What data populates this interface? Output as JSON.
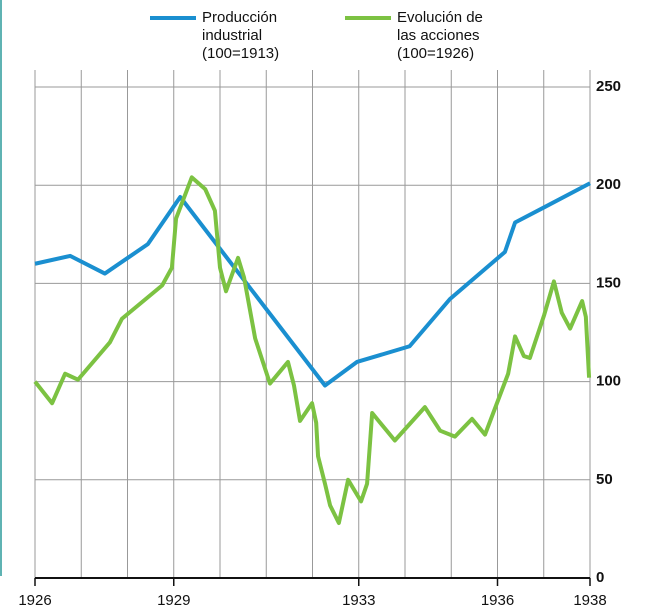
{
  "chart_data": {
    "type": "line",
    "xlim": [
      1926,
      1938
    ],
    "xticks": [
      1926,
      1929,
      1933,
      1936,
      1938
    ],
    "ylim": [
      0,
      250
    ],
    "yticks": [
      0,
      50,
      100,
      150,
      200,
      250
    ],
    "grid": true,
    "y_axis_side": "right",
    "series": [
      {
        "name": "Producción\nindustrial\n(100=1913)",
        "color": "#1a8fd0",
        "x": [
          1926,
          1926.76,
          1927.51,
          1928.44,
          1929.14,
          1932.27,
          1932.96,
          1934.1,
          1934.97,
          1936.16,
          1936.38,
          1937.03,
          1938
        ],
        "values": [
          160,
          164,
          155,
          170,
          194,
          98,
          110,
          118,
          142,
          166,
          181,
          189,
          201
        ]
      },
      {
        "name": "Evolución de\nlas acciones\n(100=1926)",
        "color": "#7cc242",
        "x": [
          1926,
          1926.37,
          1926.65,
          1926.93,
          1927.62,
          1927.88,
          1928.75,
          1928.96,
          1929.05,
          1929.39,
          1929.68,
          1929.89,
          1930,
          1930.13,
          1930.39,
          1930.52,
          1930.76,
          1931.08,
          1931.47,
          1931.6,
          1931.73,
          1931.99,
          1932.08,
          1932.12,
          1932.27,
          1932.38,
          1932.57,
          1932.77,
          1933.05,
          1933.18,
          1933.29,
          1933.78,
          1934.43,
          1934.76,
          1935.08,
          1935.45,
          1935.73,
          1936.23,
          1936.38,
          1936.57,
          1936.7,
          1937.01,
          1937.22,
          1937.39,
          1937.57,
          1937.83,
          1937.91,
          1937.98
        ],
        "values": [
          100,
          89,
          104,
          101,
          120,
          132,
          149,
          158,
          183,
          204,
          198,
          187,
          158,
          146,
          163,
          153,
          122,
          99,
          110,
          98,
          80,
          89,
          79,
          62,
          48,
          37,
          28,
          50,
          39,
          48,
          84,
          70,
          87,
          75,
          72,
          81,
          73,
          104,
          123,
          113,
          112,
          134,
          151,
          135,
          127,
          141,
          133,
          102
        ]
      }
    ]
  }
}
